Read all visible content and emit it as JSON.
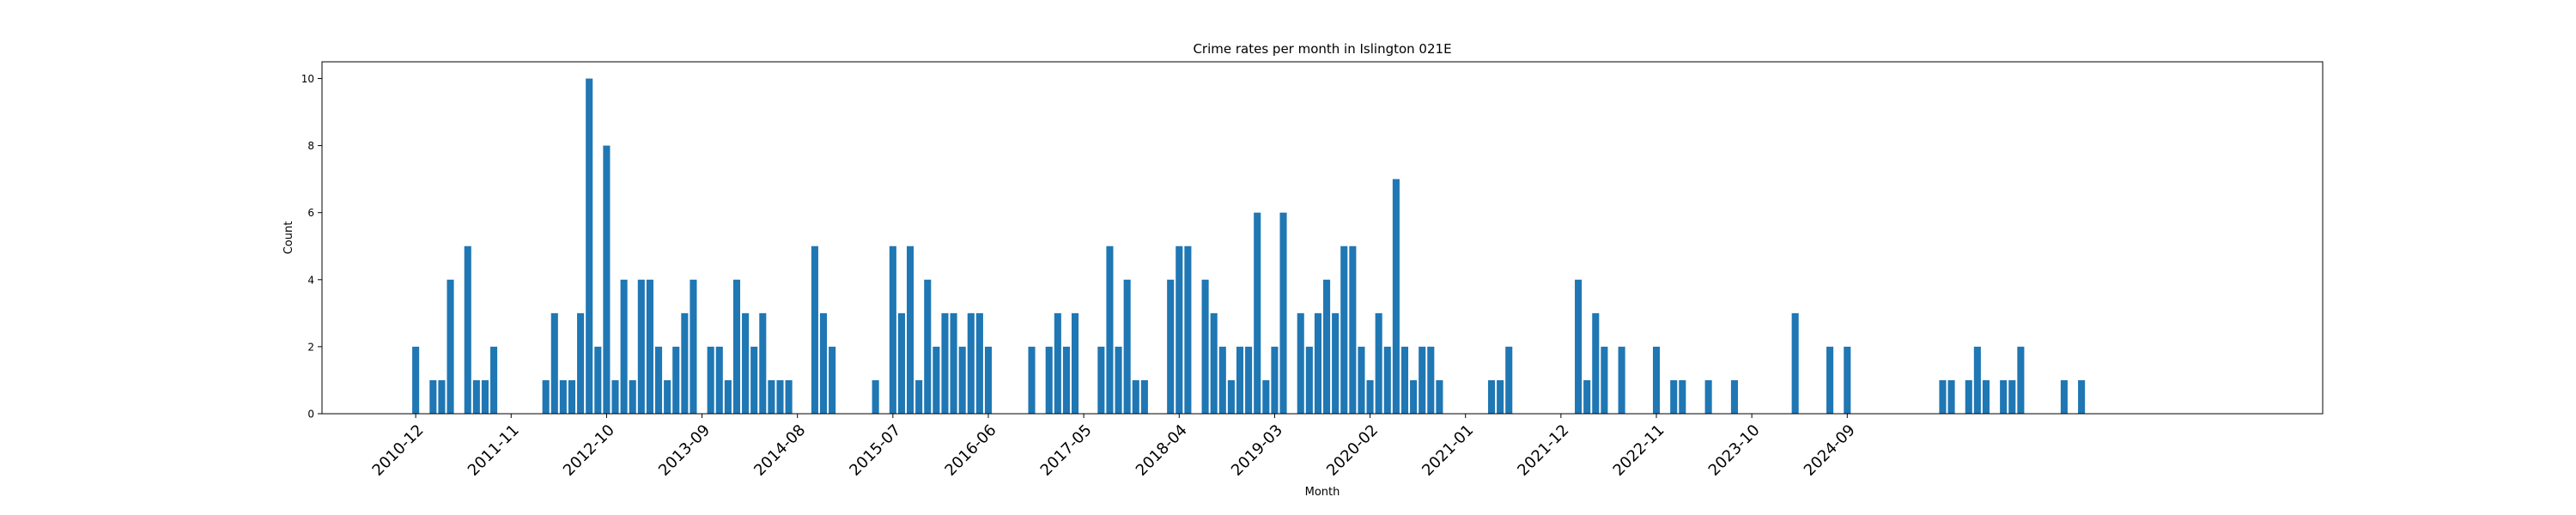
{
  "chart_data": {
    "type": "bar",
    "title": "Crime rates per month in Islington 021E",
    "xlabel": "Month",
    "ylabel": "Count",
    "ylim": [
      0,
      10.5
    ],
    "yticks": [
      0,
      2,
      4,
      6,
      8,
      10
    ],
    "xtick_labels": [
      "2010-12",
      "2011-11",
      "2012-10",
      "2013-09",
      "2014-08",
      "2015-07",
      "2016-06",
      "2017-05",
      "2018-04",
      "2019-03",
      "2020-02",
      "2021-01",
      "2021-12",
      "2022-11",
      "2023-10",
      "2024-09"
    ],
    "bar_color": "#1f77b4",
    "grid": false,
    "start_month": "2010-12",
    "values": [
      2,
      0,
      1,
      1,
      4,
      0,
      5,
      1,
      1,
      2,
      0,
      0,
      0,
      0,
      0,
      1,
      3,
      1,
      1,
      3,
      10,
      2,
      8,
      1,
      4,
      1,
      4,
      4,
      2,
      1,
      2,
      3,
      4,
      0,
      2,
      2,
      1,
      4,
      3,
      2,
      3,
      1,
      1,
      1,
      0,
      0,
      5,
      3,
      2,
      0,
      0,
      0,
      0,
      1,
      0,
      5,
      3,
      5,
      1,
      4,
      2,
      3,
      3,
      2,
      3,
      3,
      2,
      0,
      0,
      0,
      0,
      2,
      0,
      2,
      3,
      2,
      3,
      0,
      0,
      2,
      5,
      2,
      4,
      1,
      1,
      0,
      0,
      4,
      5,
      5,
      0,
      4,
      3,
      2,
      1,
      2,
      2,
      6,
      1,
      2,
      6,
      0,
      3,
      2,
      3,
      4,
      3,
      5,
      5,
      2,
      1,
      3,
      2,
      7,
      2,
      1,
      2,
      2,
      1,
      0,
      0,
      0,
      0,
      0,
      1,
      1,
      2,
      0,
      0,
      0,
      0,
      0,
      0,
      0,
      4,
      1,
      3,
      2,
      0,
      2,
      0,
      0,
      0,
      2,
      0,
      1,
      1,
      0,
      0,
      1,
      0,
      0,
      1,
      0,
      0,
      0,
      0,
      0,
      0,
      3,
      0,
      0,
      0,
      2,
      0,
      2,
      0,
      0,
      0,
      0,
      0,
      0,
      0,
      0,
      0,
      0,
      1,
      1,
      0,
      1,
      2,
      1,
      0,
      1,
      1,
      2,
      0,
      0,
      0,
      0,
      1,
      0,
      1
    ]
  }
}
